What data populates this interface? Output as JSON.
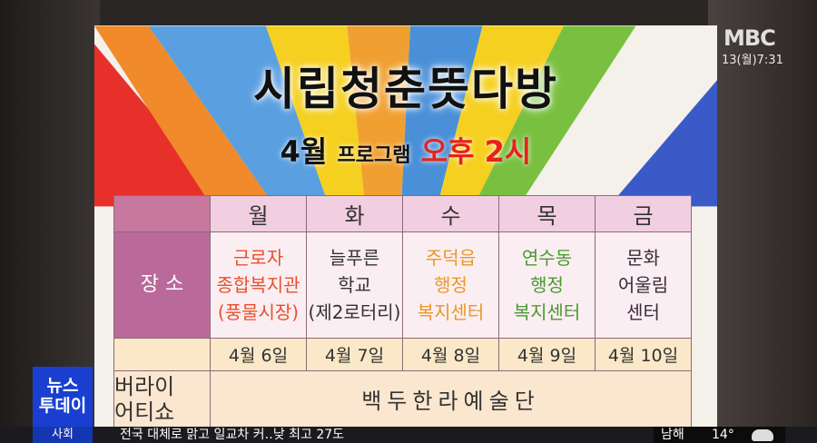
{
  "broadcast": {
    "logo": "MBC",
    "clock": "13(월)7:31",
    "program_badge": "뉴스\n투데이",
    "category": "사회",
    "ticker": "전국 대체로 맑고 일교차 커‥낮 최고 27도",
    "weather_city": "남해",
    "weather_temp": "14°",
    "weather_icon": "cloud-icon"
  },
  "poster": {
    "title": "시립청춘뜻다방",
    "subtitle_month": "4월",
    "subtitle_program": "프로그램",
    "subtitle_time": "오후 2시",
    "table": {
      "days": [
        "월",
        "화",
        "수",
        "목",
        "금"
      ],
      "place_label": "장 소",
      "places": [
        {
          "lines": [
            "근로자",
            "종합복지관",
            "(풍물시장)"
          ],
          "color": "#e8502a"
        },
        {
          "lines": [
            "늘푸른",
            "학교",
            "(제2로터리)"
          ],
          "color": "#333333"
        },
        {
          "lines": [
            "주덕읍",
            "행정",
            "복지센터"
          ],
          "color": "#e8982a"
        },
        {
          "lines": [
            "연수동",
            "행정",
            "복지센터"
          ],
          "color": "#4a9a30"
        },
        {
          "lines": [
            "문화",
            "어울림",
            "센터"
          ],
          "color": "#3a2a3a"
        }
      ],
      "dates": [
        "4월 6일",
        "4월 7일",
        "4월 8일",
        "4월 9일",
        "4월 10일"
      ],
      "event_label": "버라이어티쇼",
      "event_label_lines": [
        "버라이",
        "어티쇼"
      ],
      "event": "백두한라예술단"
    }
  }
}
